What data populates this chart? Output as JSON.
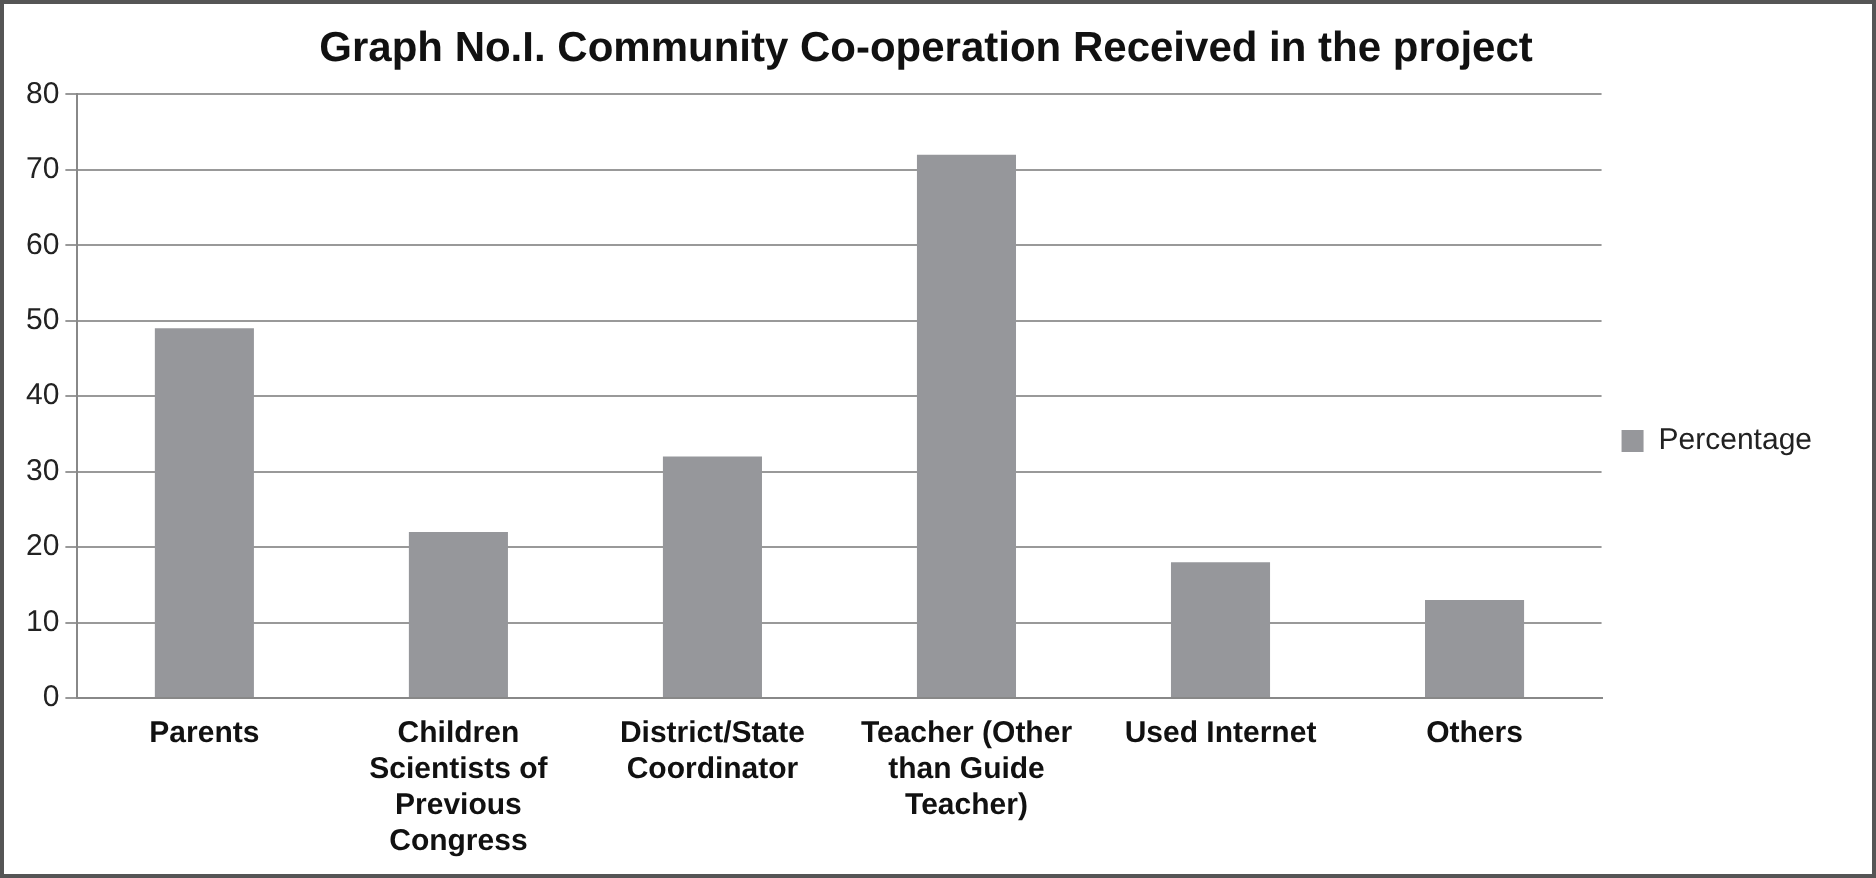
{
  "chart_data": {
    "type": "bar",
    "title": "Graph No.I. Community Co-operation Received in the project",
    "categories": [
      "Parents",
      "Children Scientists of Previous Congress",
      "District/State Coordinator",
      "Teacher (Other than Guide Teacher)",
      "Used Internet",
      "Others"
    ],
    "series": [
      {
        "name": "Percentage",
        "color": "#96979b",
        "values": [
          49,
          22,
          32,
          72,
          18,
          13
        ]
      }
    ],
    "ylim": [
      0,
      80
    ],
    "yticks": [
      0,
      10,
      20,
      30,
      40,
      50,
      60,
      70,
      80
    ],
    "grid": "y",
    "legend": "right"
  }
}
